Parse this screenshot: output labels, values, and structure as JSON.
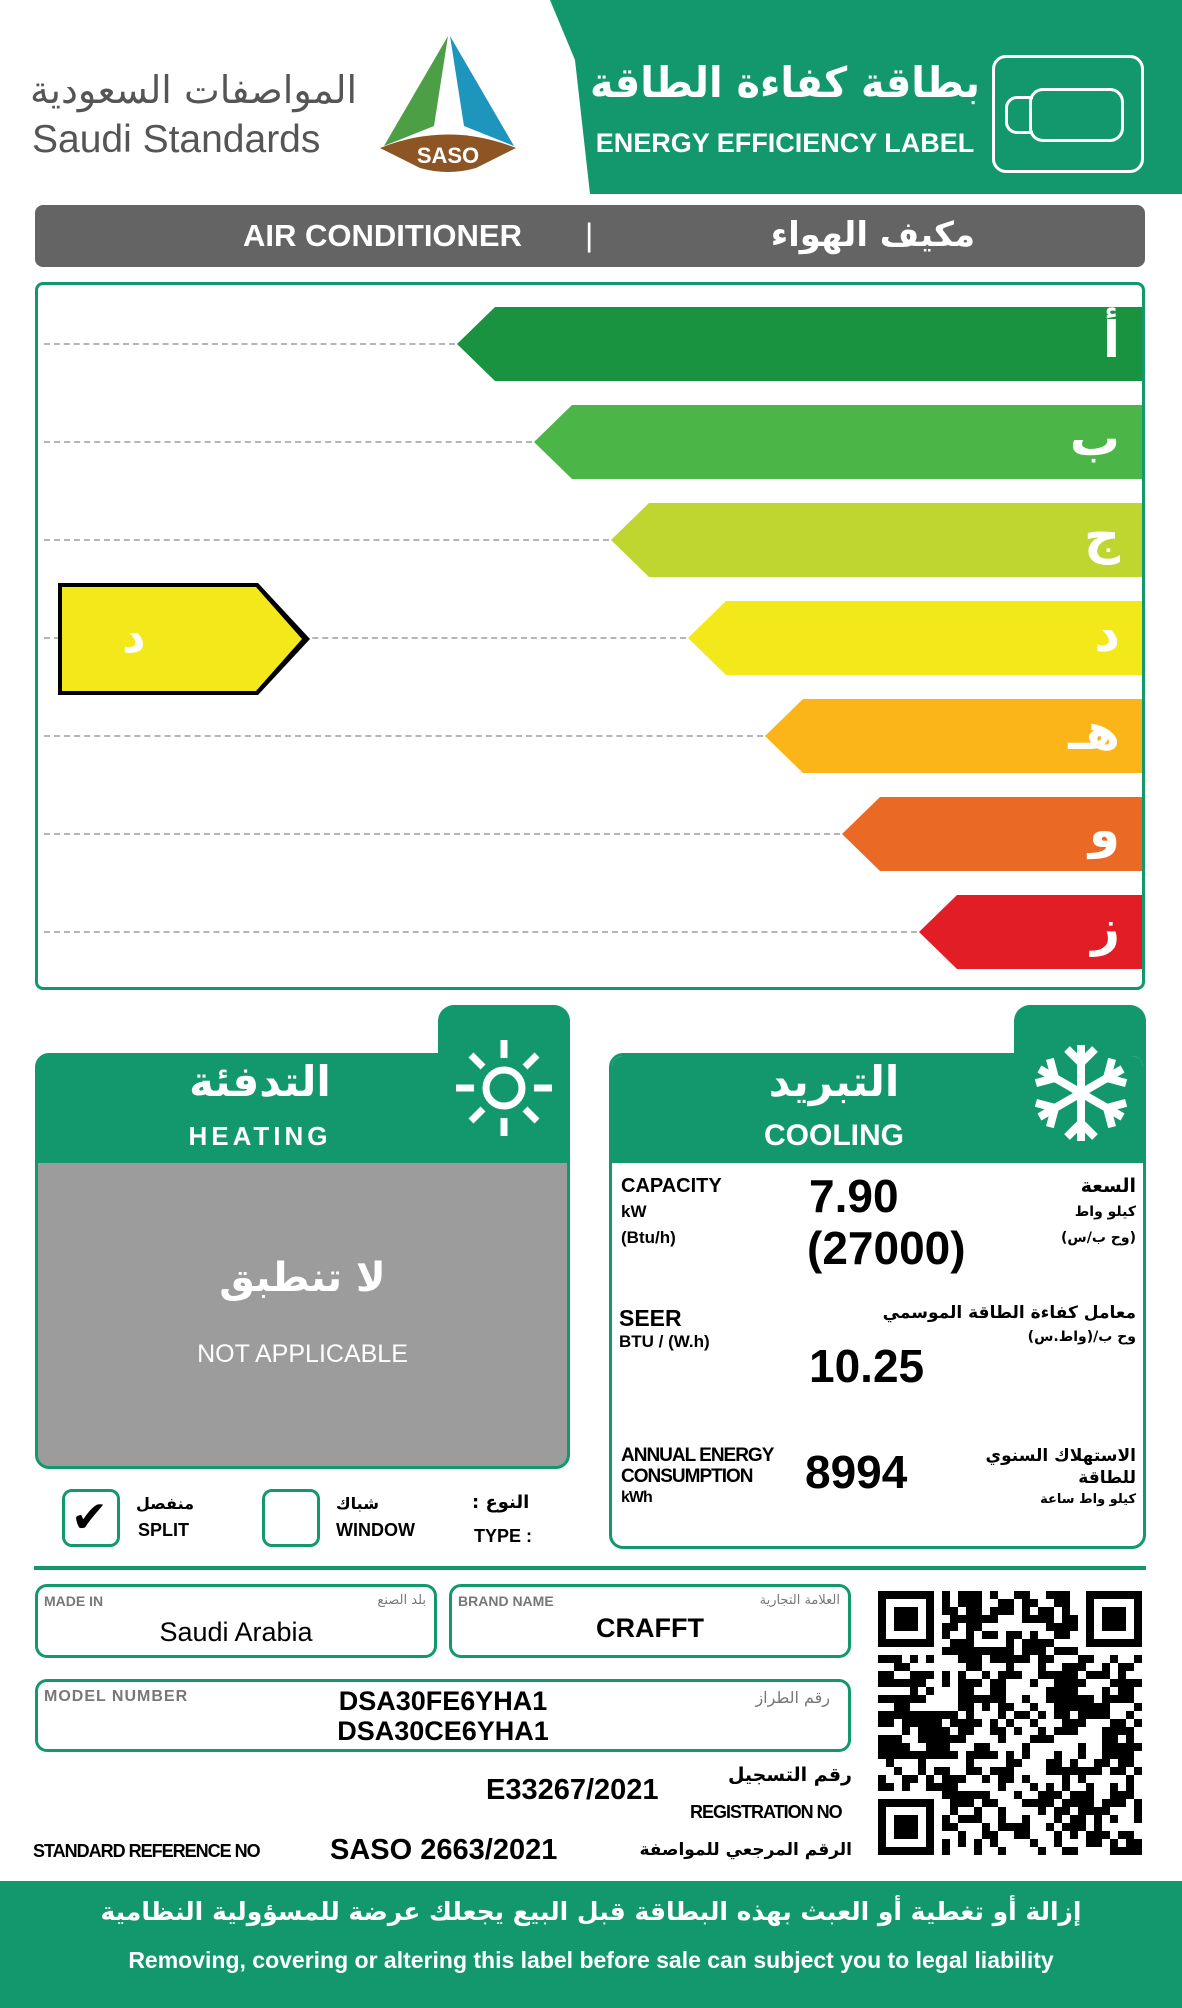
{
  "header": {
    "org_ar": "المواصفات السعودية",
    "org_en": "Saudi Standards",
    "logo_text": "SASO",
    "title_ar": "بطاقة كفاءة الطاقة",
    "title_en": "ENERGY EFFICIENCY LABEL",
    "icon": "air-conditioner-icon"
  },
  "product_bar": {
    "en": "AIR CONDITIONER",
    "sep": "|",
    "ar": "مكيف الهواء"
  },
  "scale": {
    "classes": [
      {
        "label": "أ",
        "color": "#1a9340"
      },
      {
        "label": "ب",
        "color": "#4bb647"
      },
      {
        "label": "ج",
        "color": "#bfd631"
      },
      {
        "label": "د",
        "color": "#f3e91a"
      },
      {
        "label": "هـ",
        "color": "#fbb518"
      },
      {
        "label": "و",
        "color": "#ea6a25"
      },
      {
        "label": "ز",
        "color": "#e31d25"
      }
    ],
    "rating": {
      "label": "د",
      "color": "#f3e91a",
      "class_index": 3
    }
  },
  "heating": {
    "title_ar": "التدفئة",
    "title_en": "HEATING",
    "na_ar": "لا تنطبق",
    "na_en": "NOT APPLICABLE",
    "icon": "sun-icon"
  },
  "cooling": {
    "title_ar": "التبريد",
    "title_en": "COOLING",
    "icon": "snowflake-icon",
    "capacity": {
      "en": "CAPACITY",
      "unit1": "kW",
      "unit2": "(Btu/h)",
      "value1": "7.90",
      "value2": "(27000)",
      "ar": "السعة",
      "ar_unit1": "كيلو واط",
      "ar_unit2": "(وح ب/س)"
    },
    "seer": {
      "en": "SEER",
      "unit": "BTU / (W.h)",
      "value": "10.25",
      "ar": "معامل كفاءة الطاقة الموسمي",
      "ar_unit": "وح ب/(واط.س)"
    },
    "annual": {
      "en1": "ANNUAL ENERGY",
      "en2": "CONSUMPTION",
      "unit": "kWh",
      "value": "8994",
      "ar1": "الاستهلاك السنوي",
      "ar2": "للطاقة",
      "ar_unit": "كيلو واط ساعة"
    }
  },
  "type": {
    "split_ar": "منفصل",
    "split_en": "SPLIT",
    "split_checked": true,
    "window_ar": "شباك",
    "window_en": "WINDOW",
    "window_checked": false,
    "label_ar": "النوع :",
    "label_en": "TYPE :",
    "check": "✔"
  },
  "details": {
    "made_in_label": "MADE IN",
    "made_in_label_ar": "بلد الصنع",
    "made_in": "Saudi Arabia",
    "brand_label": "BRAND  NAME",
    "brand_label_ar": "العلامة التجارية",
    "brand": "CRAFFT",
    "model_label": "MODEL NUMBER",
    "model_label_ar": "رقم الطراز",
    "model1": "DSA30FE6YHA1",
    "model2": "DSA30CE6YHA1",
    "reg_ar": "رقم التسجيل",
    "reg_en": "REGISTRATION NO",
    "reg": "E33267/2021",
    "std_en": "STANDARD REFERENCE NO",
    "std": "SASO 2663/2021",
    "std_ar": "الرقم المرجعي للمواصفة"
  },
  "footer": {
    "ar": "إزالة أو تغطية أو العبث بهذه البطاقة قبل البيع يجعلك عرضة للمسؤولية النظامية",
    "en": "Removing, covering or altering this label before sale can subject you to legal liability"
  }
}
